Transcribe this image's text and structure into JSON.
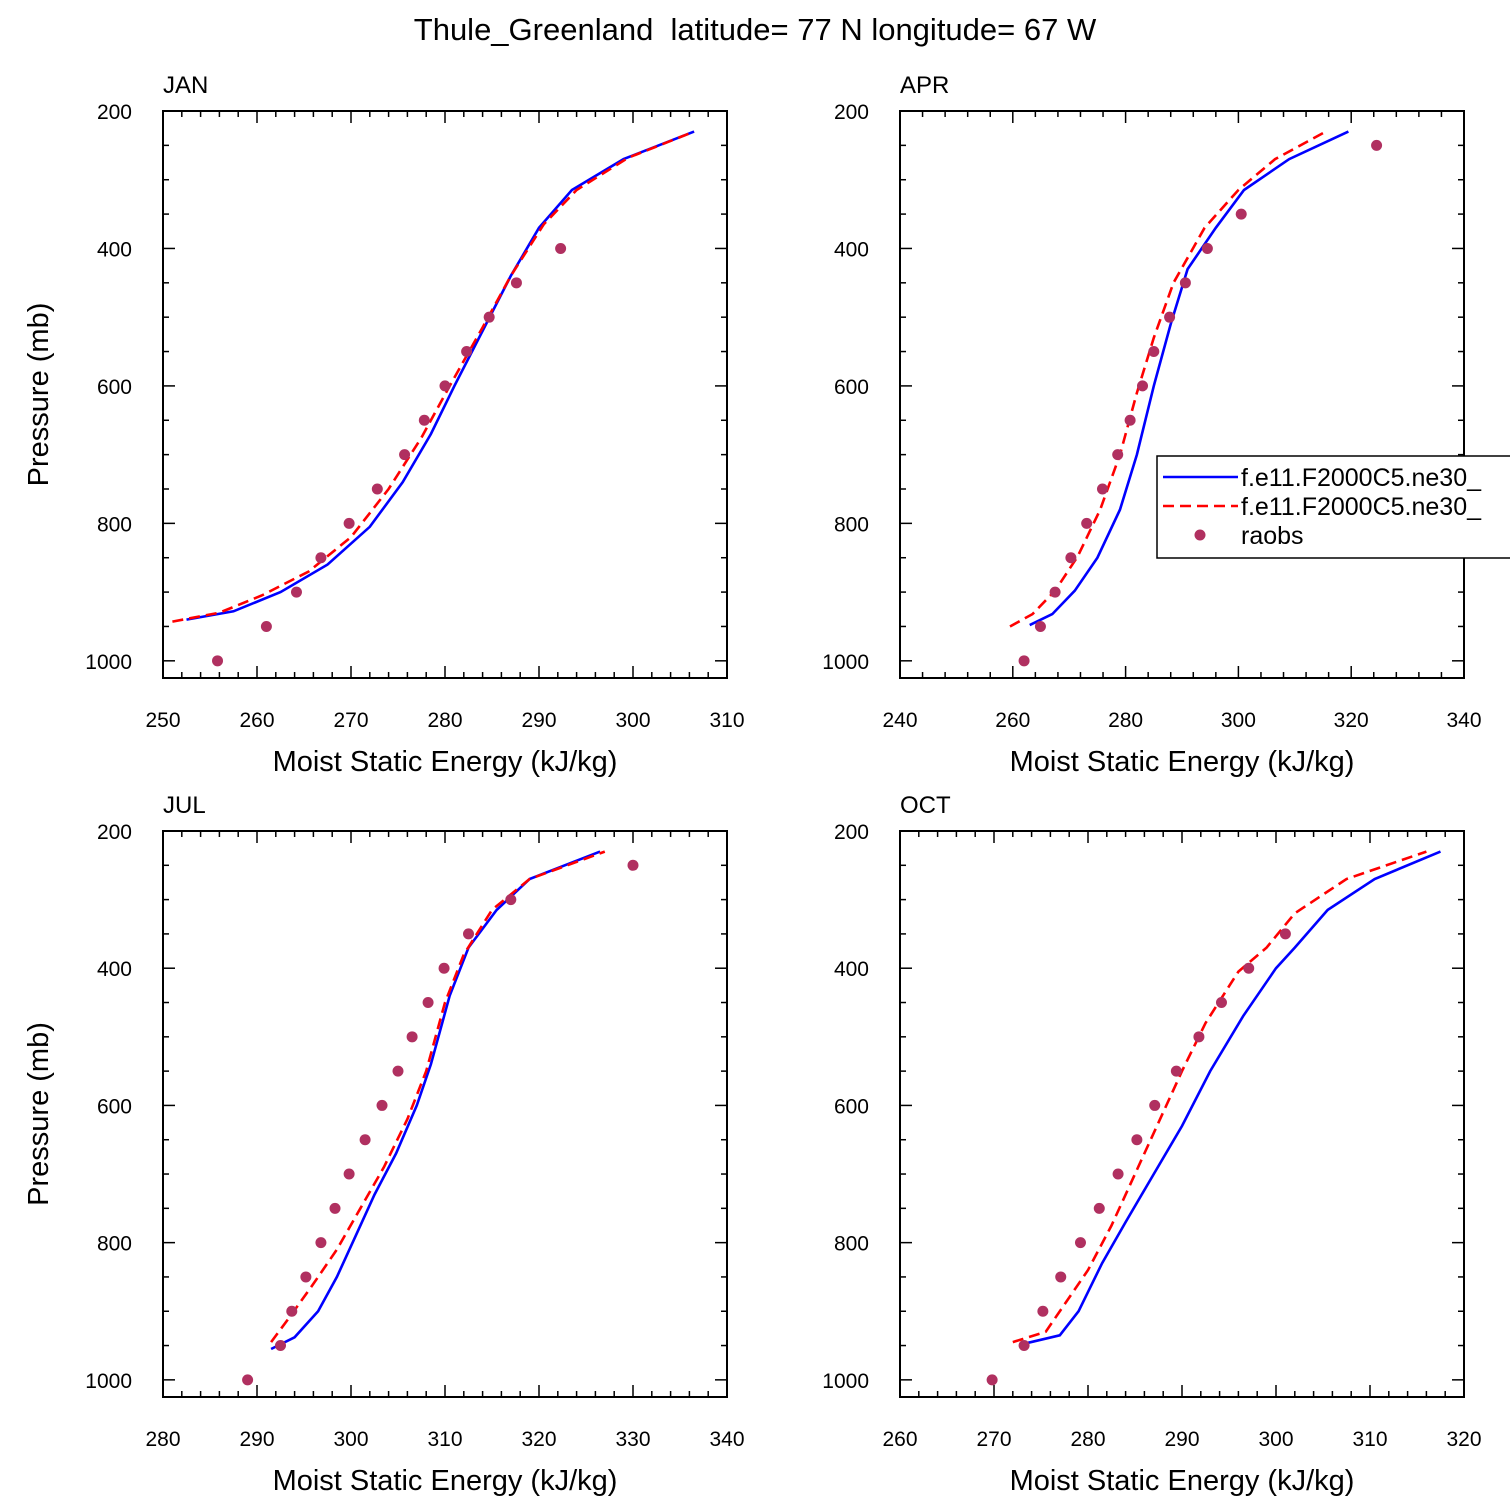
{
  "title": "Thule_Greenland  latitude= 77 N longitude= 67 W",
  "colors": {
    "series_solid": "#0000ff",
    "series_dashed": "#ff0000",
    "raobs": "#b03060"
  },
  "legend": {
    "placement": "right of APR panel",
    "entries": [
      {
        "label": "f.e11.F2000C5.ne30_",
        "style": "solid",
        "color": "#0000ff"
      },
      {
        "label": "f.e11.F2000C5.ne30_",
        "style": "dashed",
        "color": "#ff0000"
      },
      {
        "label": "raobs",
        "style": "marker",
        "color": "#b03060"
      }
    ]
  },
  "chart_data": [
    {
      "type": "line",
      "panel_label": "JAN",
      "xlabel": "Moist Static Energy (kJ/kg)",
      "ylabel": "Pressure (mb)",
      "xlim": [
        250,
        310
      ],
      "xticks": [
        250,
        260,
        270,
        280,
        290,
        300,
        310
      ],
      "ylim": [
        200,
        1025
      ],
      "yticks": [
        200,
        400,
        600,
        800,
        1000
      ],
      "y_inverted": true,
      "series": [
        {
          "style": "solid",
          "color": "#0000ff",
          "points": [
            [
              252.5,
              940
            ],
            [
              257.5,
              928
            ],
            [
              262.5,
              900
            ],
            [
              267.5,
              860
            ],
            [
              272,
              805
            ],
            [
              275.5,
              740
            ],
            [
              278.5,
              670
            ],
            [
              281,
              600
            ],
            [
              284,
              520
            ],
            [
              287,
              440
            ],
            [
              290,
              370
            ],
            [
              293.5,
              315
            ],
            [
              299,
              270
            ],
            [
              306.5,
              230
            ]
          ]
        },
        {
          "style": "dashed",
          "color": "#ff0000",
          "points": [
            [
              251,
              943
            ],
            [
              256,
              930
            ],
            [
              260.5,
              905
            ],
            [
              265.5,
              870
            ],
            [
              270,
              820
            ],
            [
              274,
              750
            ],
            [
              277.5,
              675
            ],
            [
              280.5,
              600
            ],
            [
              284,
              515
            ],
            [
              287,
              440
            ],
            [
              290.5,
              365
            ],
            [
              294,
              315
            ],
            [
              299.5,
              268
            ],
            [
              306.5,
              230
            ]
          ]
        },
        {
          "style": "marker",
          "color": "#b03060",
          "name": "raobs",
          "points": [
            [
              255.8,
              1000
            ],
            [
              261,
              950
            ],
            [
              264.2,
              900
            ],
            [
              266.8,
              850
            ],
            [
              269.8,
              800
            ],
            [
              272.8,
              750
            ],
            [
              275.7,
              700
            ],
            [
              277.8,
              650
            ],
            [
              280,
              600
            ],
            [
              282.3,
              550
            ],
            [
              284.7,
              500
            ],
            [
              287.6,
              450
            ],
            [
              292.3,
              400
            ]
          ]
        }
      ]
    },
    {
      "type": "line",
      "panel_label": "APR",
      "xlabel": "Moist Static Energy (kJ/kg)",
      "ylabel": "",
      "xlim": [
        240,
        340
      ],
      "xticks": [
        240,
        260,
        280,
        300,
        320,
        340
      ],
      "ylim": [
        200,
        1025
      ],
      "yticks": [
        200,
        400,
        600,
        800,
        1000
      ],
      "y_inverted": true,
      "series": [
        {
          "style": "solid",
          "color": "#0000ff",
          "points": [
            [
              263,
              948
            ],
            [
              267,
              932
            ],
            [
              271,
              898
            ],
            [
              275,
              850
            ],
            [
              279,
              780
            ],
            [
              282,
              700
            ],
            [
              285,
              600
            ],
            [
              288,
              510
            ],
            [
              291,
              430
            ],
            [
              296,
              370
            ],
            [
              301,
              315
            ],
            [
              309,
              270
            ],
            [
              319.5,
              230
            ]
          ]
        },
        {
          "style": "dashed",
          "color": "#ff0000",
          "points": [
            [
              259.5,
              950
            ],
            [
              263.5,
              932
            ],
            [
              267.5,
              898
            ],
            [
              271.5,
              848
            ],
            [
              275.5,
              780
            ],
            [
              279,
              700
            ],
            [
              282,
              610
            ],
            [
              285,
              530
            ],
            [
              288.5,
              450
            ],
            [
              294,
              370
            ],
            [
              300,
              315
            ],
            [
              306.5,
              270
            ],
            [
              315.5,
              230
            ]
          ]
        },
        {
          "style": "marker",
          "color": "#b03060",
          "name": "raobs",
          "points": [
            [
              262,
              1000
            ],
            [
              264.9,
              950
            ],
            [
              267.5,
              900
            ],
            [
              270.3,
              850
            ],
            [
              273.1,
              800
            ],
            [
              275.9,
              750
            ],
            [
              278.6,
              700
            ],
            [
              280.8,
              650
            ],
            [
              283,
              600
            ],
            [
              285,
              550
            ],
            [
              287.8,
              500
            ],
            [
              290.6,
              450
            ],
            [
              294.5,
              400
            ],
            [
              300.5,
              350
            ],
            [
              324.5,
              250
            ]
          ]
        }
      ]
    },
    {
      "type": "line",
      "panel_label": "JUL",
      "xlabel": "Moist Static Energy (kJ/kg)",
      "ylabel": "Pressure (mb)",
      "xlim": [
        280,
        340
      ],
      "xticks": [
        280,
        290,
        300,
        310,
        320,
        330,
        340
      ],
      "ylim": [
        200,
        1025
      ],
      "yticks": [
        200,
        400,
        600,
        800,
        1000
      ],
      "y_inverted": true,
      "series": [
        {
          "style": "solid",
          "color": "#0000ff",
          "points": [
            [
              291.5,
              955
            ],
            [
              294,
              938
            ],
            [
              296.5,
              900
            ],
            [
              298.5,
              850
            ],
            [
              300.5,
              790
            ],
            [
              302.5,
              730
            ],
            [
              304.8,
              670
            ],
            [
              307,
              600
            ],
            [
              308.5,
              540
            ],
            [
              310.5,
              440
            ],
            [
              312.5,
              370
            ],
            [
              315.5,
              315
            ],
            [
              319,
              270
            ],
            [
              326.5,
              230
            ]
          ]
        },
        {
          "style": "dashed",
          "color": "#ff0000",
          "points": [
            [
              291.5,
              945
            ],
            [
              293.5,
              908
            ],
            [
              296,
              860
            ],
            [
              298.5,
              810
            ],
            [
              301,
              750
            ],
            [
              303.5,
              690
            ],
            [
              306,
              620
            ],
            [
              308,
              550
            ],
            [
              310,
              450
            ],
            [
              312,
              380
            ],
            [
              315,
              315
            ],
            [
              319,
              270
            ],
            [
              327,
              230
            ]
          ]
        },
        {
          "style": "marker",
          "color": "#b03060",
          "name": "raobs",
          "points": [
            [
              289,
              1000
            ],
            [
              292.5,
              950
            ],
            [
              293.7,
              900
            ],
            [
              295.2,
              850
            ],
            [
              296.8,
              800
            ],
            [
              298.3,
              750
            ],
            [
              299.8,
              700
            ],
            [
              301.5,
              650
            ],
            [
              303.3,
              600
            ],
            [
              305,
              550
            ],
            [
              306.5,
              500
            ],
            [
              308.2,
              450
            ],
            [
              309.9,
              400
            ],
            [
              312.5,
              350
            ],
            [
              317,
              300
            ],
            [
              330,
              250
            ]
          ]
        }
      ]
    },
    {
      "type": "line",
      "panel_label": "OCT",
      "xlabel": "Moist Static Energy (kJ/kg)",
      "ylabel": "",
      "xlim": [
        260,
        320
      ],
      "xticks": [
        260,
        270,
        280,
        290,
        300,
        310,
        320
      ],
      "ylim": [
        200,
        1025
      ],
      "yticks": [
        200,
        400,
        600,
        800,
        1000
      ],
      "y_inverted": true,
      "series": [
        {
          "style": "solid",
          "color": "#0000ff",
          "points": [
            [
              273,
              948
            ],
            [
              277,
              935
            ],
            [
              279,
              900
            ],
            [
              281.5,
              830
            ],
            [
              284,
              770
            ],
            [
              287,
              700
            ],
            [
              290,
              630
            ],
            [
              293,
              550
            ],
            [
              296.5,
              470
            ],
            [
              300,
              400
            ],
            [
              302,
              370
            ],
            [
              305.5,
              315
            ],
            [
              310.5,
              270
            ],
            [
              317.5,
              230
            ]
          ]
        },
        {
          "style": "dashed",
          "color": "#ff0000",
          "points": [
            [
              272,
              945
            ],
            [
              275.5,
              930
            ],
            [
              277.5,
              890
            ],
            [
              280,
              840
            ],
            [
              282.5,
              775
            ],
            [
              285,
              700
            ],
            [
              287.5,
              625
            ],
            [
              290,
              550
            ],
            [
              292.5,
              480
            ],
            [
              296,
              405
            ],
            [
              299,
              370
            ],
            [
              302,
              320
            ],
            [
              307.5,
              270
            ],
            [
              316,
              230
            ]
          ]
        },
        {
          "style": "marker",
          "color": "#b03060",
          "name": "raobs",
          "points": [
            [
              269.8,
              1000
            ],
            [
              273.2,
              950
            ],
            [
              275.2,
              900
            ],
            [
              277.1,
              850
            ],
            [
              279.2,
              800
            ],
            [
              281.2,
              750
            ],
            [
              283.2,
              700
            ],
            [
              285.2,
              650
            ],
            [
              287.1,
              600
            ],
            [
              289.4,
              550
            ],
            [
              291.8,
              500
            ],
            [
              294.2,
              450
            ],
            [
              297.1,
              400
            ],
            [
              301,
              350
            ]
          ]
        }
      ]
    }
  ]
}
